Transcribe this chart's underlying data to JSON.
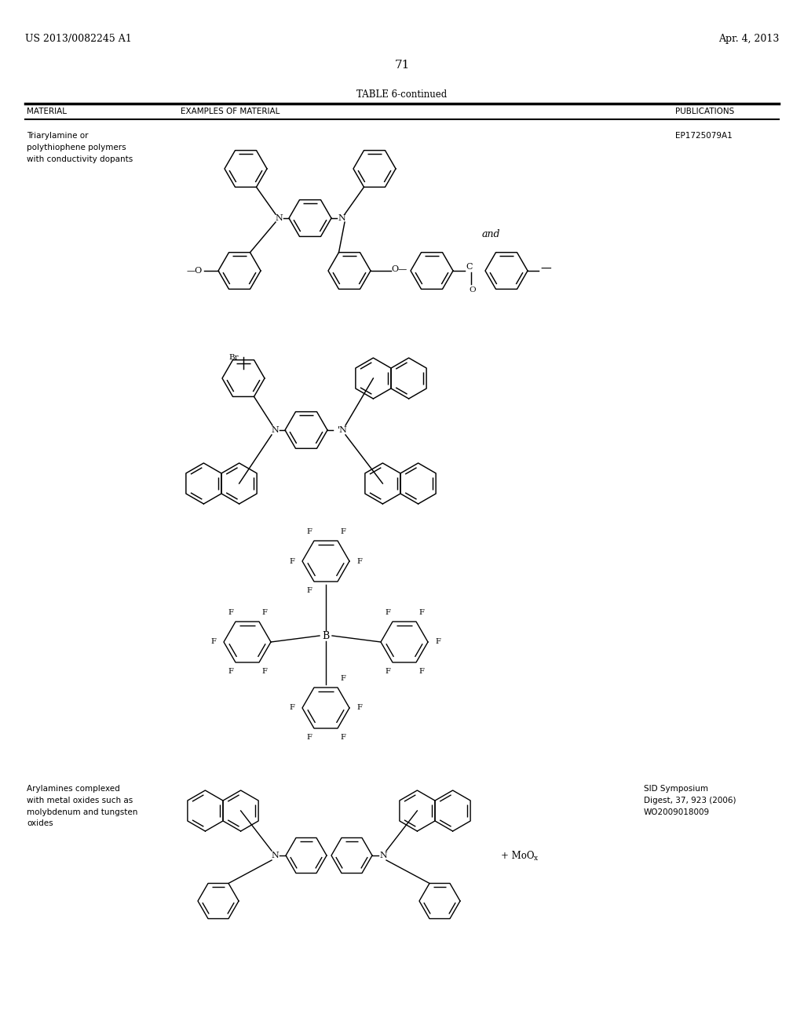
{
  "bg_color": "#ffffff",
  "header_left": "US 2013/0082245 A1",
  "header_right": "Apr. 4, 2013",
  "page_number": "71",
  "table_title": "TABLE 6-continued",
  "col1_header": "MATERIAL",
  "col2_header": "EXAMPLES OF MATERIAL",
  "col3_header": "PUBLICATIONS",
  "row1_material": "Triarylamine or\npolythiophene polymers\nwith conductivity dopants",
  "row1_pub": "EP1725079A1",
  "row1_and": "and",
  "row4_material": "Arylamines complexed\nwith metal oxides such as\nmolybdenum and tungsten\noxides",
  "row4_pub_line1": "SID Symposium",
  "row4_pub_line2": "Digest, 37, 923 (2006)",
  "row4_pub_line3": "WO2009018009",
  "row4_MoOx": "+ MoO",
  "row4_MoOx_sub": "x"
}
